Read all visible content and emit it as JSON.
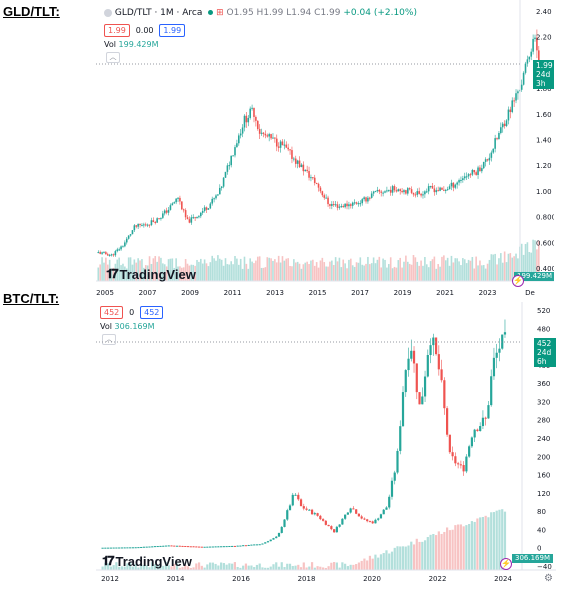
{
  "labels": {
    "gld": "GLD/TLT:",
    "btc": "BTC/TLT:"
  },
  "colors": {
    "up": "#26a69a",
    "down": "#ef5350",
    "up_vol": "#b2dfdb",
    "down_vol": "#f7c3c3",
    "axis": "#131722",
    "grid": "#f0f3fa"
  },
  "panel_gld": {
    "symbol": "GLD/TLT · 1M · Arca",
    "ohlc": {
      "o": "O1.95",
      "h": "H1.99",
      "l": "L1.94",
      "c": "C1.99",
      "chg": "+0.04 (+2.10%)"
    },
    "bid": "1.99",
    "spread": "0.00",
    "ask": "1.99",
    "vol_label": "Vol",
    "vol_value": "199.429M",
    "price_tag": "1.99",
    "price_tag_time": "24d 3h",
    "vol_tag": "199.429M",
    "brand": "TradingView",
    "x_ticks": [
      "2005",
      "2007",
      "2009",
      "2011",
      "2013",
      "2015",
      "2017",
      "2019",
      "2021",
      "2023",
      "De"
    ],
    "y_ticks": [
      "2.40",
      "2.20",
      "2.00",
      "1.80",
      "1.60",
      "1.40",
      "1.20",
      "1.00",
      "0.8000",
      "0.6000",
      "0.4000"
    ]
  },
  "panel_btc": {
    "bid": "452",
    "spread": "0",
    "ask": "452",
    "vol_label": "Vol",
    "vol_value": "306.169M",
    "price_tag": "452",
    "price_tag_time": "24d 6h",
    "vol_tag": "306.169M",
    "brand": "TradingView",
    "x_ticks": [
      "2012",
      "2014",
      "2016",
      "2018",
      "2020",
      "2022",
      "2024"
    ],
    "y_ticks": [
      "520",
      "480",
      "440",
      "400",
      "360",
      "320",
      "280",
      "240",
      "200",
      "160",
      "120",
      "80",
      "40",
      "0",
      "−40"
    ]
  },
  "chart_data": [
    {
      "type": "candlestick",
      "title": "GLD/TLT · 1M · Arca",
      "ylim": [
        0.4,
        2.4
      ],
      "x_range": [
        2004.8,
        2024.9
      ],
      "series": [
        {
          "name": "GLD/TLT",
          "values": [
            [
              2004.9,
              0.52
            ],
            [
              2005.5,
              0.5
            ],
            [
              2006.0,
              0.58
            ],
            [
              2006.5,
              0.72
            ],
            [
              2007.0,
              0.74
            ],
            [
              2007.5,
              0.78
            ],
            [
              2008.0,
              0.86
            ],
            [
              2008.4,
              0.95
            ],
            [
              2008.8,
              0.76
            ],
            [
              2009.2,
              0.8
            ],
            [
              2009.7,
              0.88
            ],
            [
              2010.2,
              0.98
            ],
            [
              2010.7,
              1.25
            ],
            [
              2011.0,
              1.4
            ],
            [
              2011.3,
              1.55
            ],
            [
              2011.7,
              1.63
            ],
            [
              2012.0,
              1.45
            ],
            [
              2012.5,
              1.4
            ],
            [
              2013.0,
              1.35
            ],
            [
              2013.5,
              1.25
            ],
            [
              2014.0,
              1.15
            ],
            [
              2014.5,
              1.05
            ],
            [
              2015.0,
              0.9
            ],
            [
              2015.5,
              0.88
            ],
            [
              2016.0,
              0.9
            ],
            [
              2016.5,
              0.92
            ],
            [
              2017.0,
              0.98
            ],
            [
              2017.5,
              1.0
            ],
            [
              2018.0,
              1.02
            ],
            [
              2018.5,
              1.0
            ],
            [
              2019.0,
              0.98
            ],
            [
              2019.5,
              1.02
            ],
            [
              2020.0,
              1.0
            ],
            [
              2020.5,
              1.05
            ],
            [
              2021.0,
              1.12
            ],
            [
              2021.5,
              1.15
            ],
            [
              2022.0,
              1.25
            ],
            [
              2022.5,
              1.45
            ],
            [
              2023.0,
              1.65
            ],
            [
              2023.5,
              1.85
            ],
            [
              2023.8,
              2.05
            ],
            [
              2024.0,
              2.2
            ],
            [
              2024.3,
              1.99
            ]
          ]
        }
      ]
    },
    {
      "type": "candlestick",
      "title": "BTC/TLT",
      "ylim": [
        -40,
        520
      ],
      "x_range": [
        2011.8,
        2024.5
      ],
      "series": [
        {
          "name": "BTC/TLT",
          "values": [
            [
              2012.0,
              0
            ],
            [
              2013.0,
              1
            ],
            [
              2014.0,
              5
            ],
            [
              2015.0,
              2
            ],
            [
              2016.0,
              4
            ],
            [
              2016.8,
              8
            ],
            [
              2017.3,
              25
            ],
            [
              2017.8,
              120
            ],
            [
              2018.0,
              90
            ],
            [
              2018.5,
              70
            ],
            [
              2019.0,
              35
            ],
            [
              2019.5,
              90
            ],
            [
              2019.9,
              60
            ],
            [
              2020.2,
              55
            ],
            [
              2020.6,
              90
            ],
            [
              2020.9,
              190
            ],
            [
              2021.1,
              360
            ],
            [
              2021.3,
              460
            ],
            [
              2021.6,
              300
            ],
            [
              2021.9,
              470
            ],
            [
              2022.2,
              380
            ],
            [
              2022.5,
              200
            ],
            [
              2022.9,
              170
            ],
            [
              2023.2,
              260
            ],
            [
              2023.6,
              280
            ],
            [
              2023.8,
              400
            ],
            [
              2024.0,
              440
            ],
            [
              2024.2,
              452
            ]
          ]
        }
      ]
    }
  ]
}
